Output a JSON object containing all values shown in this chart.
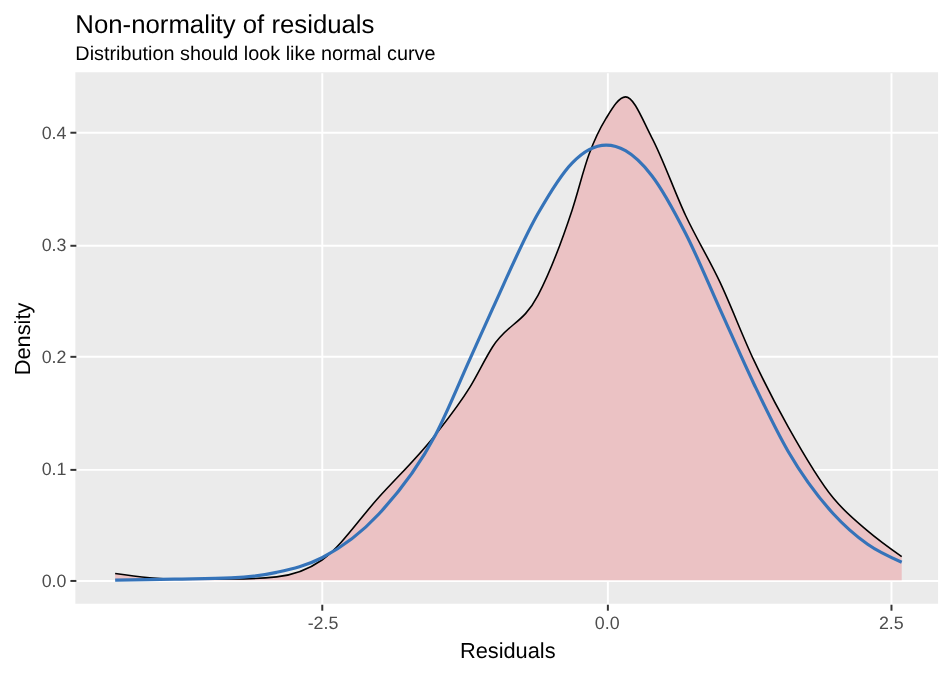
{
  "chart_data": {
    "type": "area",
    "title": "Non-normality of residuals",
    "subtitle": "Distribution should look like normal curve",
    "xlabel": "Residuals",
    "ylabel": "Density",
    "x": [
      -4.32,
      -3.8,
      -3.3,
      -2.9,
      -2.5,
      -2.0,
      -1.5,
      -1.2,
      -1.0,
      -0.6,
      -0.3,
      -0.15,
      0.0,
      0.17,
      0.4,
      0.7,
      1.0,
      1.3,
      1.6,
      2.0,
      2.3,
      2.6
    ],
    "series": [
      {
        "color": "#ebc2c4",
        "values": [
          0.006,
          0.001,
          0.001,
          0.003,
          0.018,
          0.074,
          0.13,
          0.172,
          0.208,
          0.254,
          0.33,
          0.38,
          0.412,
          0.431,
          0.395,
          0.325,
          0.266,
          0.196,
          0.137,
          0.073,
          0.044,
          0.021
        ]
      },
      {
        "type": "line",
        "color": "#3573b9",
        "values": [
          0.0,
          0.001,
          0.002,
          0.007,
          0.02,
          0.059,
          0.13,
          0.197,
          0.242,
          0.327,
          0.372,
          0.384,
          0.388,
          0.383,
          0.361,
          0.309,
          0.242,
          0.175,
          0.115,
          0.059,
          0.032,
          0.016
        ]
      }
    ],
    "xlim": [
      -4.67,
      2.92
    ],
    "ylim": [
      -0.021,
      0.453
    ],
    "xticks": [
      -2.5,
      {
        "value": 0,
        "label": "0.0"
      },
      2.5
    ],
    "yticks": [
      {
        "value": 0,
        "label": "0.0"
      },
      0.1,
      0.2,
      0.3,
      0.4
    ],
    "grid": true
  }
}
